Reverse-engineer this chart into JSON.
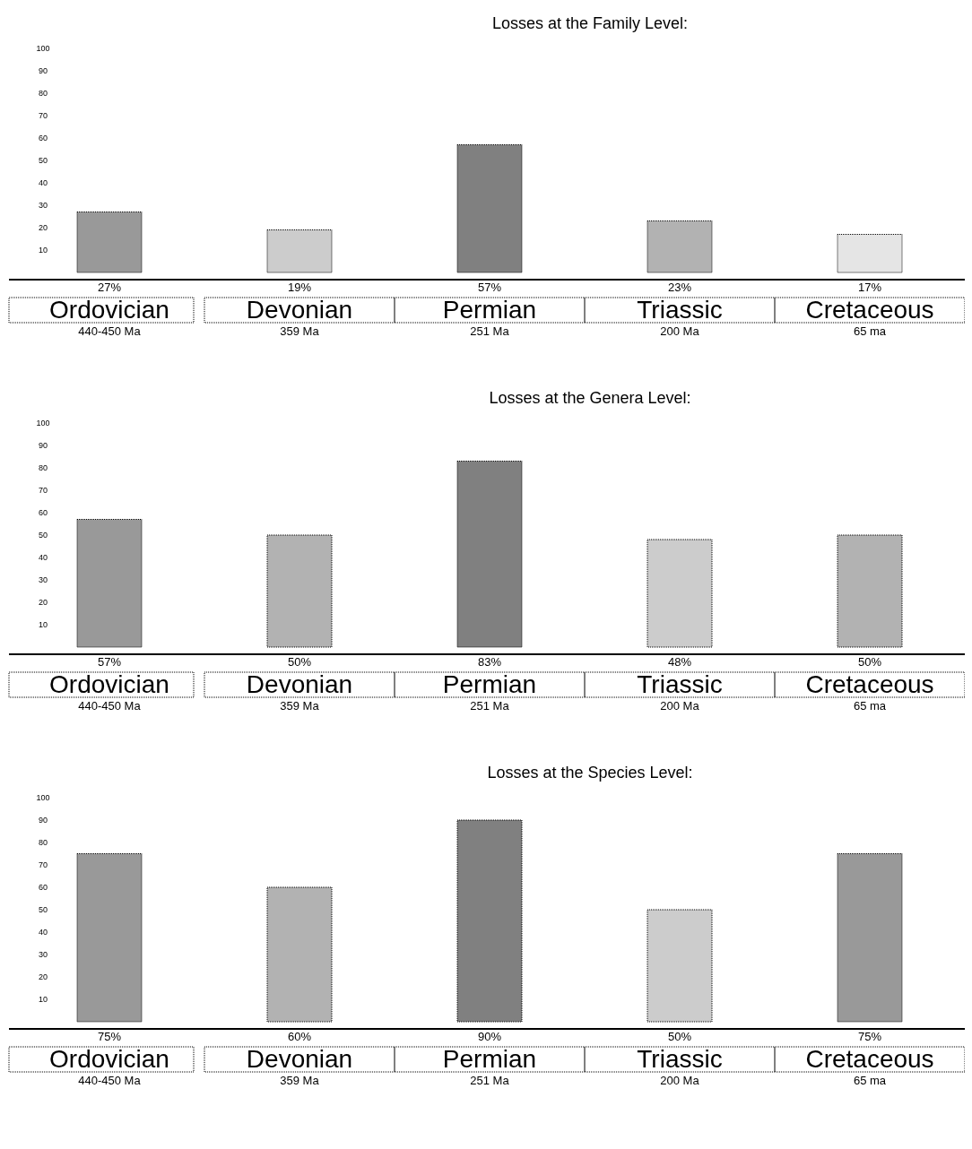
{
  "chart_data": [
    {
      "type": "bar",
      "title": "Losses at the Family Level:",
      "categories": [
        "Ordovician\n440-450 Ma",
        "Devonian\n359 Ma",
        "Permian\n251 Ma",
        "Triassic\n200 Ma",
        "Cretaceous\n65 ma"
      ],
      "values": [
        27,
        19,
        57,
        23,
        17
      ],
      "colors": [
        "#999999",
        "#cccccc",
        "#808080",
        "#b2b2b2",
        "#e5e5e5"
      ],
      "value_labels": [
        "27%",
        "19%",
        "57%",
        "23%",
        "17%"
      ],
      "ylim": [
        0,
        100
      ],
      "yticks": [
        10,
        20,
        30,
        40,
        50,
        60,
        70,
        80,
        90,
        100
      ]
    },
    {
      "type": "bar",
      "title": "Losses at the Genera Level:",
      "categories": [
        "Ordovician\n440-450 Ma",
        "Devonian\n359 Ma",
        "Permian\n251 Ma",
        "Triassic\n200 Ma",
        "Cretaceous\n65 ma"
      ],
      "values": [
        57,
        50,
        83,
        48,
        50
      ],
      "colors": [
        "#999999",
        "#b2b2b2",
        "#808080",
        "#cccccc",
        "#b2b2b2"
      ],
      "value_labels": [
        "57%",
        "50%",
        "83%",
        "48%",
        "50%"
      ],
      "ylim": [
        0,
        100
      ],
      "yticks": [
        10,
        20,
        30,
        40,
        50,
        60,
        70,
        80,
        90,
        100
      ]
    },
    {
      "type": "bar",
      "title": "Losses at the Species Level:",
      "categories": [
        "Ordovician\n440-450 Ma",
        "Devonian\n359 Ma",
        "Permian\n251 Ma",
        "Triassic\n200 Ma",
        "Cretaceous\n65 ma"
      ],
      "values": [
        75,
        60,
        90,
        50,
        75
      ],
      "colors": [
        "#999999",
        "#b2b2b2",
        "#808080",
        "#cccccc",
        "#999999"
      ],
      "value_labels": [
        "75%",
        "60%",
        "90%",
        "50%",
        "75%"
      ],
      "ylim": [
        0,
        100
      ],
      "yticks": [
        10,
        20,
        30,
        40,
        50,
        60,
        70,
        80,
        90,
        100
      ]
    }
  ]
}
